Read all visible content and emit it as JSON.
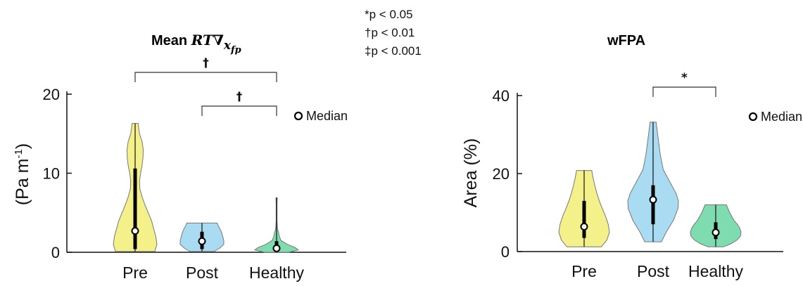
{
  "significance_legend": [
    "*p < 0.05",
    "†p < 0.01",
    "‡p < 0.001"
  ],
  "chart_data": [
    {
      "type": "violin",
      "title_prefix": "Mean",
      "title_math": "RT∇",
      "title_subscript": "x",
      "title_subscript2": "fp",
      "ylabel": "(Pa m",
      "ylabel_sup": "-1",
      "ylabel_end": ")",
      "ylim": [
        0,
        20
      ],
      "yticks": [
        "0",
        "10",
        "20"
      ],
      "categories": [
        "Pre",
        "Post",
        "Healthy"
      ],
      "colors": [
        "#f4f08a",
        "#a9dcf3",
        "#7fdcb0"
      ],
      "legend": "Median",
      "legend_marker": "circle",
      "legend_position": "right",
      "series": [
        {
          "category": "Pre",
          "min": 0.1,
          "max": 16.3,
          "median": 2.7,
          "q1": 0.4,
          "q3": 10.6,
          "profile": [
            [
              0.1,
              0.9
            ],
            [
              1,
              1.0
            ],
            [
              2,
              0.95
            ],
            [
              3,
              0.85
            ],
            [
              4,
              0.75
            ],
            [
              5,
              0.6
            ],
            [
              6,
              0.45
            ],
            [
              7,
              0.32
            ],
            [
              8,
              0.22
            ],
            [
              9,
              0.2
            ],
            [
              10,
              0.25
            ],
            [
              11,
              0.32
            ],
            [
              12,
              0.36
            ],
            [
              13,
              0.37
            ],
            [
              14,
              0.32
            ],
            [
              15,
              0.2
            ],
            [
              16.3,
              0.14
            ]
          ]
        },
        {
          "category": "Post",
          "min": 0.1,
          "max": 3.7,
          "median": 1.4,
          "q1": 0.4,
          "q3": 2.6,
          "profile": [
            [
              0.1,
              0.55
            ],
            [
              0.5,
              0.8
            ],
            [
              1,
              1.0
            ],
            [
              1.5,
              1.0
            ],
            [
              2,
              0.95
            ],
            [
              2.5,
              0.9
            ],
            [
              3,
              0.82
            ],
            [
              3.5,
              0.72
            ],
            [
              3.7,
              0.7
            ]
          ]
        },
        {
          "category": "Healthy",
          "min": 0,
          "max": 6.9,
          "median": 0.5,
          "q1": 0.1,
          "q3": 1.4,
          "profile": [
            [
              0,
              0.55
            ],
            [
              0.3,
              1.0
            ],
            [
              0.6,
              0.85
            ],
            [
              1,
              0.5
            ],
            [
              1.5,
              0.2
            ],
            [
              2,
              0.13
            ],
            [
              2.4,
              0.1
            ],
            [
              3,
              0.04
            ],
            [
              4,
              0.02
            ],
            [
              5,
              0.02
            ],
            [
              6,
              0.02
            ],
            [
              6.9,
              0.03
            ]
          ]
        }
      ],
      "significance": [
        {
          "from": "Pre",
          "to": "Healthy",
          "label": "†"
        },
        {
          "from": "Post",
          "to": "Healthy",
          "label": "†"
        }
      ]
    },
    {
      "type": "violin",
      "title": "wFPA",
      "ylabel": "Area (%)",
      "ylim": [
        0,
        40
      ],
      "yticks": [
        "0",
        "20",
        "40"
      ],
      "categories": [
        "Pre",
        "Post",
        "Healthy"
      ],
      "colors": [
        "#f4f08a",
        "#a9dcf3",
        "#7fdcb0"
      ],
      "legend": "Median",
      "legend_marker": "circle",
      "legend_position": "right",
      "series": [
        {
          "category": "Pre",
          "min": 1.2,
          "max": 20.8,
          "median": 6.4,
          "q1": 3.5,
          "q3": 13.0,
          "profile": [
            [
              1.2,
              0.68
            ],
            [
              3,
              0.9
            ],
            [
              5,
              1.0
            ],
            [
              7,
              0.95
            ],
            [
              9,
              0.85
            ],
            [
              11,
              0.72
            ],
            [
              13,
              0.6
            ],
            [
              15,
              0.5
            ],
            [
              17,
              0.42
            ],
            [
              19,
              0.35
            ],
            [
              20.8,
              0.3
            ]
          ]
        },
        {
          "category": "Post",
          "min": 2.5,
          "max": 33.2,
          "median": 13.3,
          "q1": 7.0,
          "q3": 17.0,
          "profile": [
            [
              2.5,
              0.33
            ],
            [
              5,
              0.52
            ],
            [
              8,
              0.8
            ],
            [
              11,
              0.98
            ],
            [
              13,
              1.0
            ],
            [
              15,
              0.9
            ],
            [
              18,
              0.65
            ],
            [
              21,
              0.4
            ],
            [
              25,
              0.28
            ],
            [
              29,
              0.2
            ],
            [
              33.2,
              0.12
            ]
          ]
        },
        {
          "category": "Healthy",
          "min": 1.2,
          "max": 12.0,
          "median": 4.9,
          "q1": 3.2,
          "q3": 7.5,
          "profile": [
            [
              1.2,
              0.3
            ],
            [
              2,
              0.6
            ],
            [
              3,
              0.85
            ],
            [
              4,
              0.98
            ],
            [
              5,
              1.0
            ],
            [
              6,
              0.95
            ],
            [
              7,
              0.85
            ],
            [
              8,
              0.72
            ],
            [
              10,
              0.55
            ],
            [
              12,
              0.42
            ]
          ]
        }
      ],
      "significance": [
        {
          "from": "Post",
          "to": "Healthy",
          "label": "*"
        }
      ]
    }
  ]
}
